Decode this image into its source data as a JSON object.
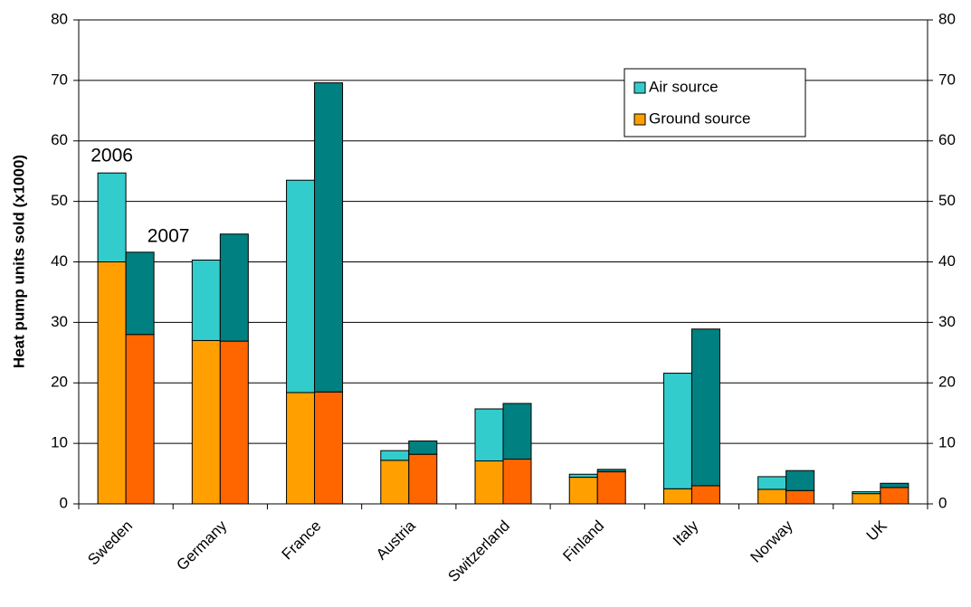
{
  "chart_data": {
    "type": "grouped-stacked-bar",
    "ylabel": "Heat pump units sold (x1000)",
    "categories": [
      "Sweden",
      "Germany",
      "France",
      "Austria",
      "Switzerland",
      "Finland",
      "Italy",
      "Norway",
      "UK"
    ],
    "groups": [
      {
        "name": "2006",
        "series": [
          {
            "name": "Ground source",
            "color": "#ffa000",
            "values": [
              40,
              27,
              18.4,
              7.2,
              7.1,
              4.4,
              2.5,
              2.4,
              1.7
            ]
          },
          {
            "name": "Air source",
            "color": "#33cccc",
            "values": [
              14.7,
              13.3,
              35.1,
              1.6,
              8.6,
              0.5,
              19.1,
              2.1,
              0.3
            ]
          }
        ]
      },
      {
        "name": "2007",
        "series": [
          {
            "name": "Ground source",
            "color": "#ff6600",
            "values": [
              28,
              26.9,
              18.5,
              8.2,
              7.4,
              5.3,
              3.0,
              2.2,
              2.7
            ]
          },
          {
            "name": "Air source",
            "color": "#008080",
            "values": [
              13.6,
              17.7,
              51.1,
              2.2,
              9.2,
              0.4,
              25.9,
              3.3,
              0.7
            ]
          }
        ]
      }
    ],
    "ylim": [
      0,
      80
    ],
    "yticks": [
      0,
      10,
      20,
      30,
      40,
      50,
      60,
      70,
      80
    ],
    "y2lim": [
      0,
      80
    ],
    "y2ticks": [
      0,
      10,
      20,
      30,
      40,
      50,
      60,
      70,
      80
    ],
    "grid": true
  }
}
